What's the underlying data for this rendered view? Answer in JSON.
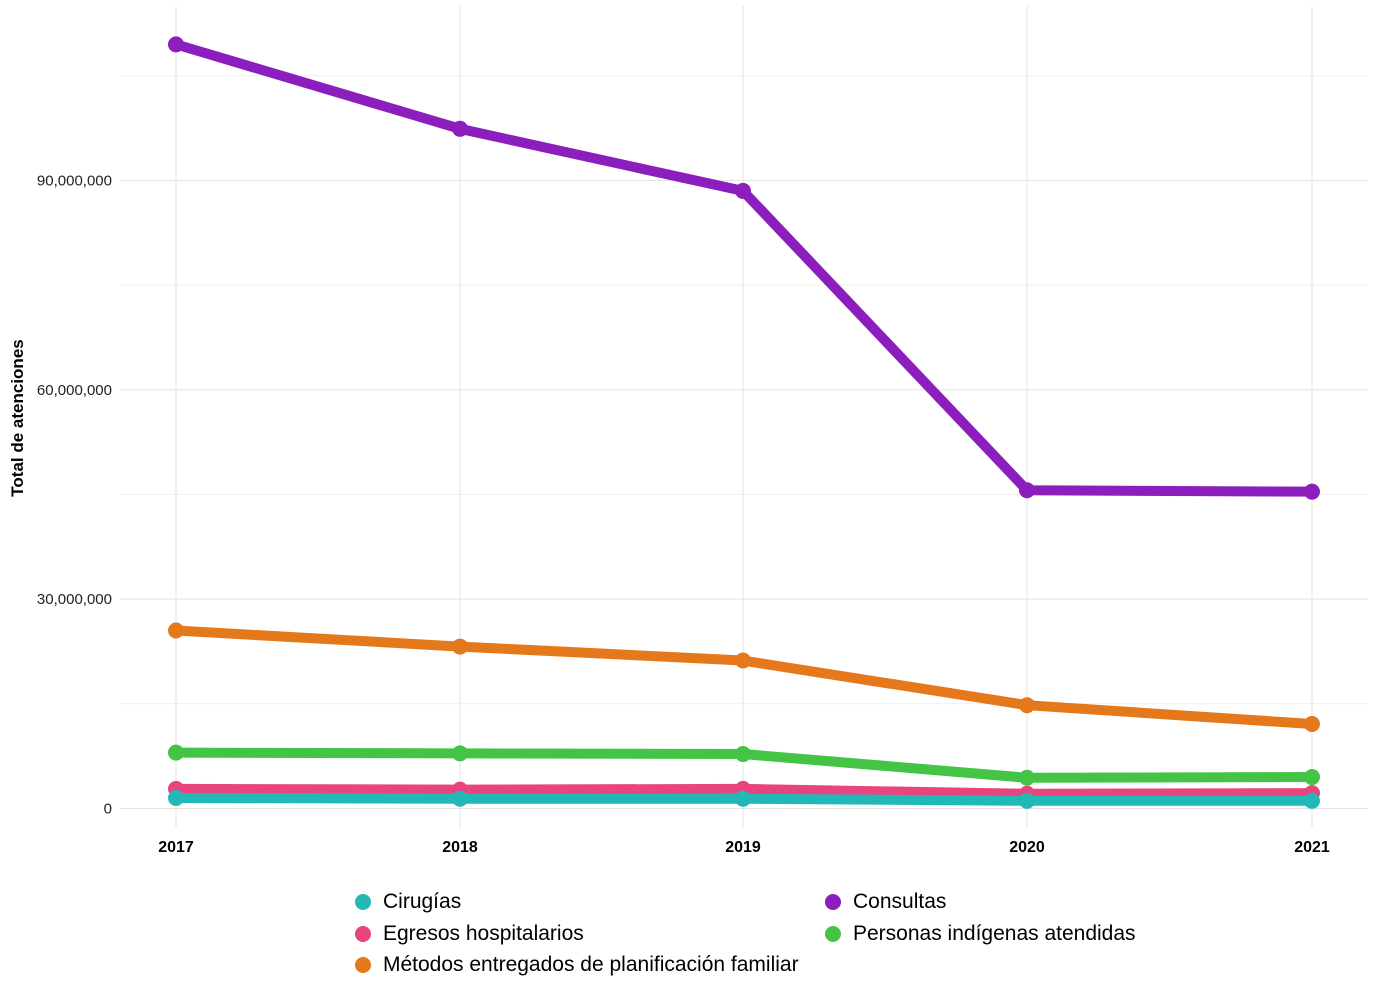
{
  "chart_data": {
    "type": "line",
    "title": "",
    "xlabel": "",
    "ylabel": "Total de atenciones",
    "x": [
      "2017",
      "2018",
      "2019",
      "2020",
      "2021"
    ],
    "ylim": [
      -2800000,
      115000000
    ],
    "yticks": [
      0,
      30000000,
      60000000,
      90000000
    ],
    "ytick_labels": [
      "0",
      "30,000,000",
      "60,000,000",
      "90,000,000"
    ],
    "grid": true,
    "legend_position": "bottom",
    "series": [
      {
        "name": "Consultas",
        "color": "#8B1EBD",
        "values": [
          109500000,
          97400000,
          88500000,
          45600000,
          45400000
        ]
      },
      {
        "name": "Métodos entregados de planificación familiar",
        "color": "#E5781A",
        "values": [
          25500000,
          23200000,
          21200000,
          14800000,
          12100000
        ]
      },
      {
        "name": "Personas indígenas atendidas",
        "color": "#44C444",
        "values": [
          8000000,
          7900000,
          7800000,
          4400000,
          4500000
        ]
      },
      {
        "name": "Egresos hospitalarios",
        "color": "#E8447E",
        "values": [
          2800000,
          2700000,
          2800000,
          2100000,
          2200000
        ]
      },
      {
        "name": "Cirugías",
        "color": "#22B8B8",
        "values": [
          1500000,
          1400000,
          1400000,
          1100000,
          1100000
        ]
      }
    ]
  },
  "legend": {
    "items": [
      {
        "label": "Cirugías",
        "color": "#22B8B8"
      },
      {
        "label": "Consultas",
        "color": "#8B1EBD"
      },
      {
        "label": "Egresos hospitalarios",
        "color": "#E8447E"
      },
      {
        "label": "Personas indígenas atendidas",
        "color": "#44C444"
      },
      {
        "label": "Métodos entregados de planificación familiar",
        "color": "#E5781A"
      }
    ]
  }
}
